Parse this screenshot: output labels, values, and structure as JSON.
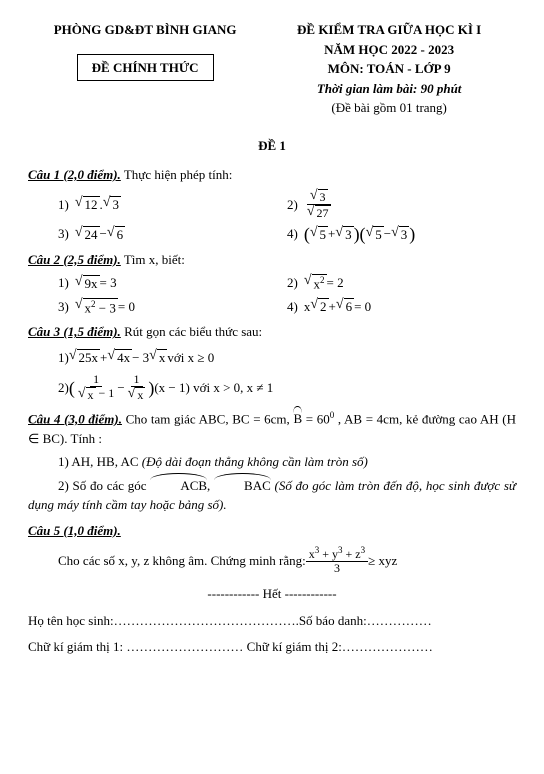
{
  "header": {
    "dept": "PHÒNG GD&ĐT BÌNH GIANG",
    "official": "ĐỀ CHÍNH THỨC",
    "title1": "ĐỀ KIỂM TRA GIỮA HỌC KÌ I",
    "title2": "NĂM HỌC 2022 - 2023",
    "title3": "MÔN: TOÁN - LỚP 9",
    "title4": "Thời gian làm bài: 90 phút",
    "title5": "(Đề bài gồm 01 trang)"
  },
  "exam_no": "ĐỀ 1",
  "cau1": {
    "title": "Câu 1 (2,0 điểm).",
    "text": " Thực hiện phép tính:",
    "i1": "1)",
    "i2": "2)",
    "i3": "3)",
    "i4": "4)"
  },
  "cau2": {
    "title": "Câu 2 (2,5 điểm).",
    "text": " Tìm x, biết:",
    "i1": "1)",
    "i2": "2)",
    "i3": "3)",
    "i4": "4)",
    "e1_rhs": " = 3",
    "e2_rhs": " = 2",
    "e3_rhs": " = 0",
    "e4_rhs": " = 0"
  },
  "cau3": {
    "title": "Câu 3 (1,5 điểm).",
    "text": " Rút gọn các biểu thức sau:",
    "i1": "1) ",
    "i2": "2) ",
    "e1_tail": "  với x ≥ 0",
    "e2_tail": "(x − 1) với x > 0, x ≠ 1"
  },
  "cau4": {
    "title": "Câu 4 (3,0 điểm).",
    "text1": " Cho tam giác ABC, BC = 6cm, ",
    "text1b": " = 60",
    "text1c": " , AB = 4cm, kẻ đường cao AH (H ∈ BC). Tính :",
    "i1": "1) AH, HB, AC ",
    "i1_note": "(Độ dài đoạn thẳng không cần làm tròn số)",
    "i2": "2) Số đo các góc ",
    "i2b": " (Số đo góc làm tròn đến độ, học sinh được sử dụng máy tính cầm tay hoặc bảng số).",
    "acb": "ACB",
    "bac": "BAC",
    "comma": ", "
  },
  "cau5": {
    "title": "Câu 5 (1,0 điểm).",
    "text": "Cho các số x, y, z không âm. Chứng minh rằng: ",
    "rhs": " ≥ xyz",
    "num": "x",
    "den": "3"
  },
  "footer": {
    "end": "------------ Hết ------------",
    "line1a": "Họ tên học sinh:…………………………………….Số báo danh:……………",
    "line2a": "Chữ kí giám thị 1: ……………………… Chữ kí giám thị 2:…………………"
  },
  "math": {
    "sqrt12": "12",
    "sqrt3": "3",
    "sqrt27": "27",
    "sqrt24": "24",
    "sqrt6": "6",
    "sqrt5": "5",
    "sqrt9x": "9x",
    "sqrtx2": "x",
    "sqrtx2m3": "x",
    "xsqrt2": "x",
    "sqrt2": "2",
    "sqrt25x": "25x",
    "sqrt4x": "4x",
    "sqrtx": "x",
    "sqrtxm1": "x",
    "minus3": " − 3",
    "minus": " − ",
    "plus": " + ",
    "dot": ".",
    "one": "1",
    "minus1b": " − 1",
    "m3": " − 3",
    "b_hat": "B",
    "deg0": "0",
    "sup2": "2",
    "sup3": "3",
    "y": " + y",
    "z": " + z"
  }
}
